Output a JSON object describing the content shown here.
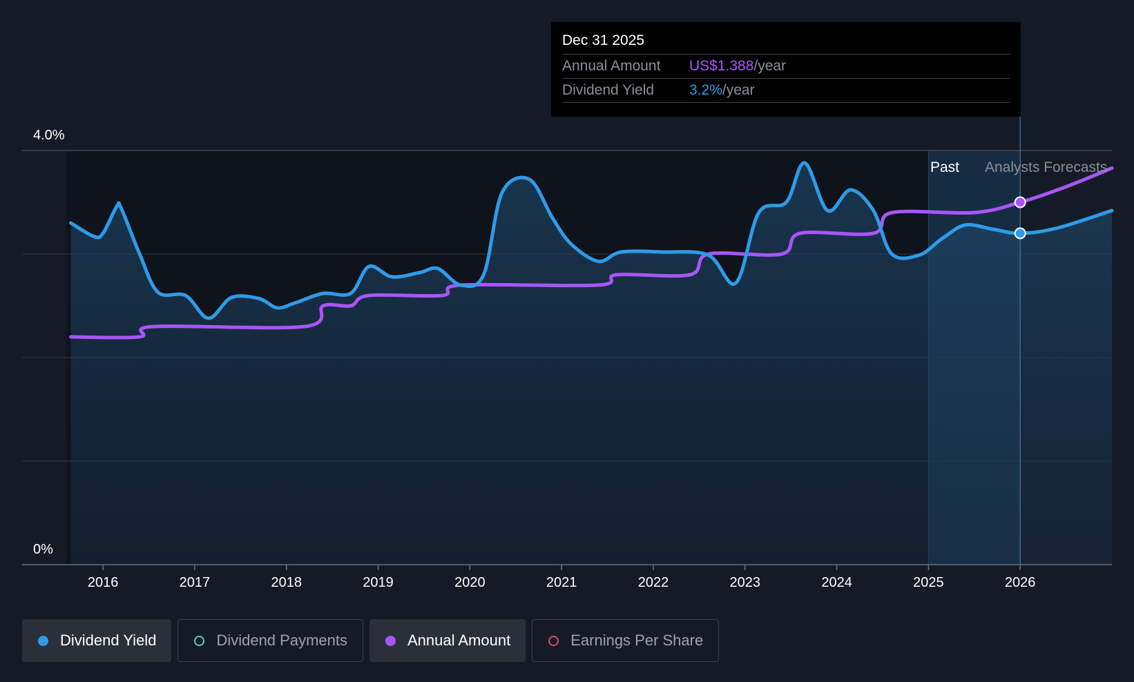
{
  "tooltip": {
    "date": "Dec 31 2025",
    "annual_label": "Annual Amount",
    "annual_value": "US$1.388",
    "yield_label": "Dividend Yield",
    "yield_value": "3.2%",
    "unit": "/year"
  },
  "regions": {
    "past": "Past",
    "forecast": "Analysts Forecasts"
  },
  "legend": [
    {
      "label": "Dividend Yield",
      "color": "#2f9be8",
      "active": true,
      "filled": true
    },
    {
      "label": "Dividend Payments",
      "color": "#4fd1c5",
      "active": false,
      "filled": false
    },
    {
      "label": "Annual Amount",
      "color": "#a855f7",
      "active": true,
      "filled": true
    },
    {
      "label": "Earnings Per Share",
      "color": "#e0457b",
      "active": false,
      "filled": false
    }
  ],
  "chart_data": {
    "type": "line",
    "title": "",
    "xlabel": "",
    "ylabel": "",
    "ylim": [
      0,
      4.0
    ],
    "xlim": [
      2015.6,
      2027.0
    ],
    "y_tick_labels": [
      "0%",
      "4.0%"
    ],
    "x_ticks": [
      2016,
      2017,
      2018,
      2019,
      2020,
      2021,
      2022,
      2023,
      2024,
      2025,
      2026
    ],
    "grid": true,
    "past_forecast_boundary": 2025.0,
    "highlight_date": 2026.0,
    "series": [
      {
        "name": "Dividend Yield",
        "color": "#2f9be8",
        "area": true,
        "points": [
          [
            2015.65,
            3.3
          ],
          [
            2015.9,
            3.17
          ],
          [
            2016.0,
            3.2
          ],
          [
            2016.15,
            3.46
          ],
          [
            2016.2,
            3.44
          ],
          [
            2016.4,
            3.0
          ],
          [
            2016.6,
            2.63
          ],
          [
            2016.9,
            2.6
          ],
          [
            2017.15,
            2.38
          ],
          [
            2017.4,
            2.58
          ],
          [
            2017.7,
            2.57
          ],
          [
            2017.9,
            2.48
          ],
          [
            2018.1,
            2.53
          ],
          [
            2018.4,
            2.62
          ],
          [
            2018.7,
            2.62
          ],
          [
            2018.9,
            2.88
          ],
          [
            2019.15,
            2.78
          ],
          [
            2019.45,
            2.82
          ],
          [
            2019.65,
            2.86
          ],
          [
            2019.9,
            2.7
          ],
          [
            2020.15,
            2.8
          ],
          [
            2020.35,
            3.59
          ],
          [
            2020.65,
            3.72
          ],
          [
            2020.9,
            3.35
          ],
          [
            2021.1,
            3.1
          ],
          [
            2021.4,
            2.93
          ],
          [
            2021.65,
            3.02
          ],
          [
            2022.1,
            3.02
          ],
          [
            2022.6,
            2.99
          ],
          [
            2022.9,
            2.72
          ],
          [
            2023.15,
            3.4
          ],
          [
            2023.45,
            3.5
          ],
          [
            2023.65,
            3.88
          ],
          [
            2023.9,
            3.42
          ],
          [
            2024.15,
            3.62
          ],
          [
            2024.4,
            3.42
          ],
          [
            2024.6,
            3.0
          ],
          [
            2024.9,
            2.99
          ],
          [
            2025.15,
            3.15
          ],
          [
            2025.4,
            3.28
          ],
          [
            2025.7,
            3.24
          ],
          [
            2026.0,
            3.2
          ],
          [
            2026.4,
            3.25
          ],
          [
            2027.0,
            3.42
          ]
        ]
      },
      {
        "name": "Annual Amount",
        "color": "#a855f7",
        "area": false,
        "points": [
          [
            2015.65,
            2.2
          ],
          [
            2016.4,
            2.2
          ],
          [
            2016.55,
            2.3
          ],
          [
            2018.2,
            2.3
          ],
          [
            2018.4,
            2.5
          ],
          [
            2018.7,
            2.5
          ],
          [
            2018.9,
            2.6
          ],
          [
            2019.7,
            2.6
          ],
          [
            2019.9,
            2.7
          ],
          [
            2021.4,
            2.7
          ],
          [
            2021.6,
            2.8
          ],
          [
            2022.4,
            2.8
          ],
          [
            2022.6,
            3.0
          ],
          [
            2023.4,
            3.0
          ],
          [
            2023.6,
            3.2
          ],
          [
            2024.4,
            3.2
          ],
          [
            2024.6,
            3.4
          ],
          [
            2025.5,
            3.4
          ],
          [
            2026.0,
            3.5
          ],
          [
            2026.5,
            3.65
          ],
          [
            2027.0,
            3.83
          ]
        ]
      }
    ]
  }
}
